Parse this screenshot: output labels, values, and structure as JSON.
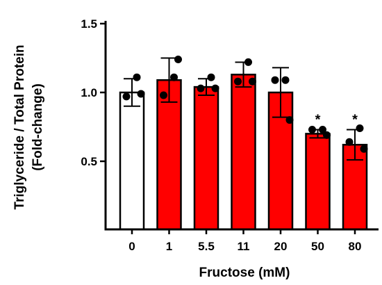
{
  "chart_data": {
    "type": "bar",
    "title": "",
    "xlabel": "Fructose (mM)",
    "ylabel_lines": [
      "Triglyceride / Total Protein",
      "(Fold-change)"
    ],
    "categories": [
      "0",
      "1",
      "5.5",
      "11",
      "20",
      "50",
      "80"
    ],
    "values": [
      1.0,
      1.09,
      1.04,
      1.13,
      1.0,
      0.7,
      0.62
    ],
    "error_upper": [
      1.1,
      1.25,
      1.1,
      1.22,
      1.18,
      0.73,
      0.73
    ],
    "error_lower": [
      0.9,
      0.93,
      0.98,
      1.04,
      0.82,
      0.67,
      0.51
    ],
    "points": [
      [
        1.11,
        0.97,
        0.99
      ],
      [
        1.11,
        0.98,
        1.24
      ],
      [
        1.11,
        1.03,
        1.03
      ],
      [
        1.22,
        1.08,
        1.08
      ],
      [
        1.09,
        1.09,
        0.8
      ],
      [
        0.73,
        0.73,
        0.69
      ],
      [
        0.74,
        0.64,
        0.59
      ]
    ],
    "bar_colors": [
      "#ffffff",
      "#ff0000",
      "#ff0000",
      "#ff0000",
      "#ff0000",
      "#ff0000",
      "#ff0000"
    ],
    "significance": [
      "",
      "",
      "",
      "",
      "",
      "*",
      "*"
    ],
    "yticks": [
      "0.5",
      "1.0",
      "1.5"
    ],
    "ytick_values": [
      0.5,
      1.0,
      1.5
    ],
    "ylim": [
      0.0,
      1.5
    ],
    "grid": false,
    "legend": "none"
  }
}
